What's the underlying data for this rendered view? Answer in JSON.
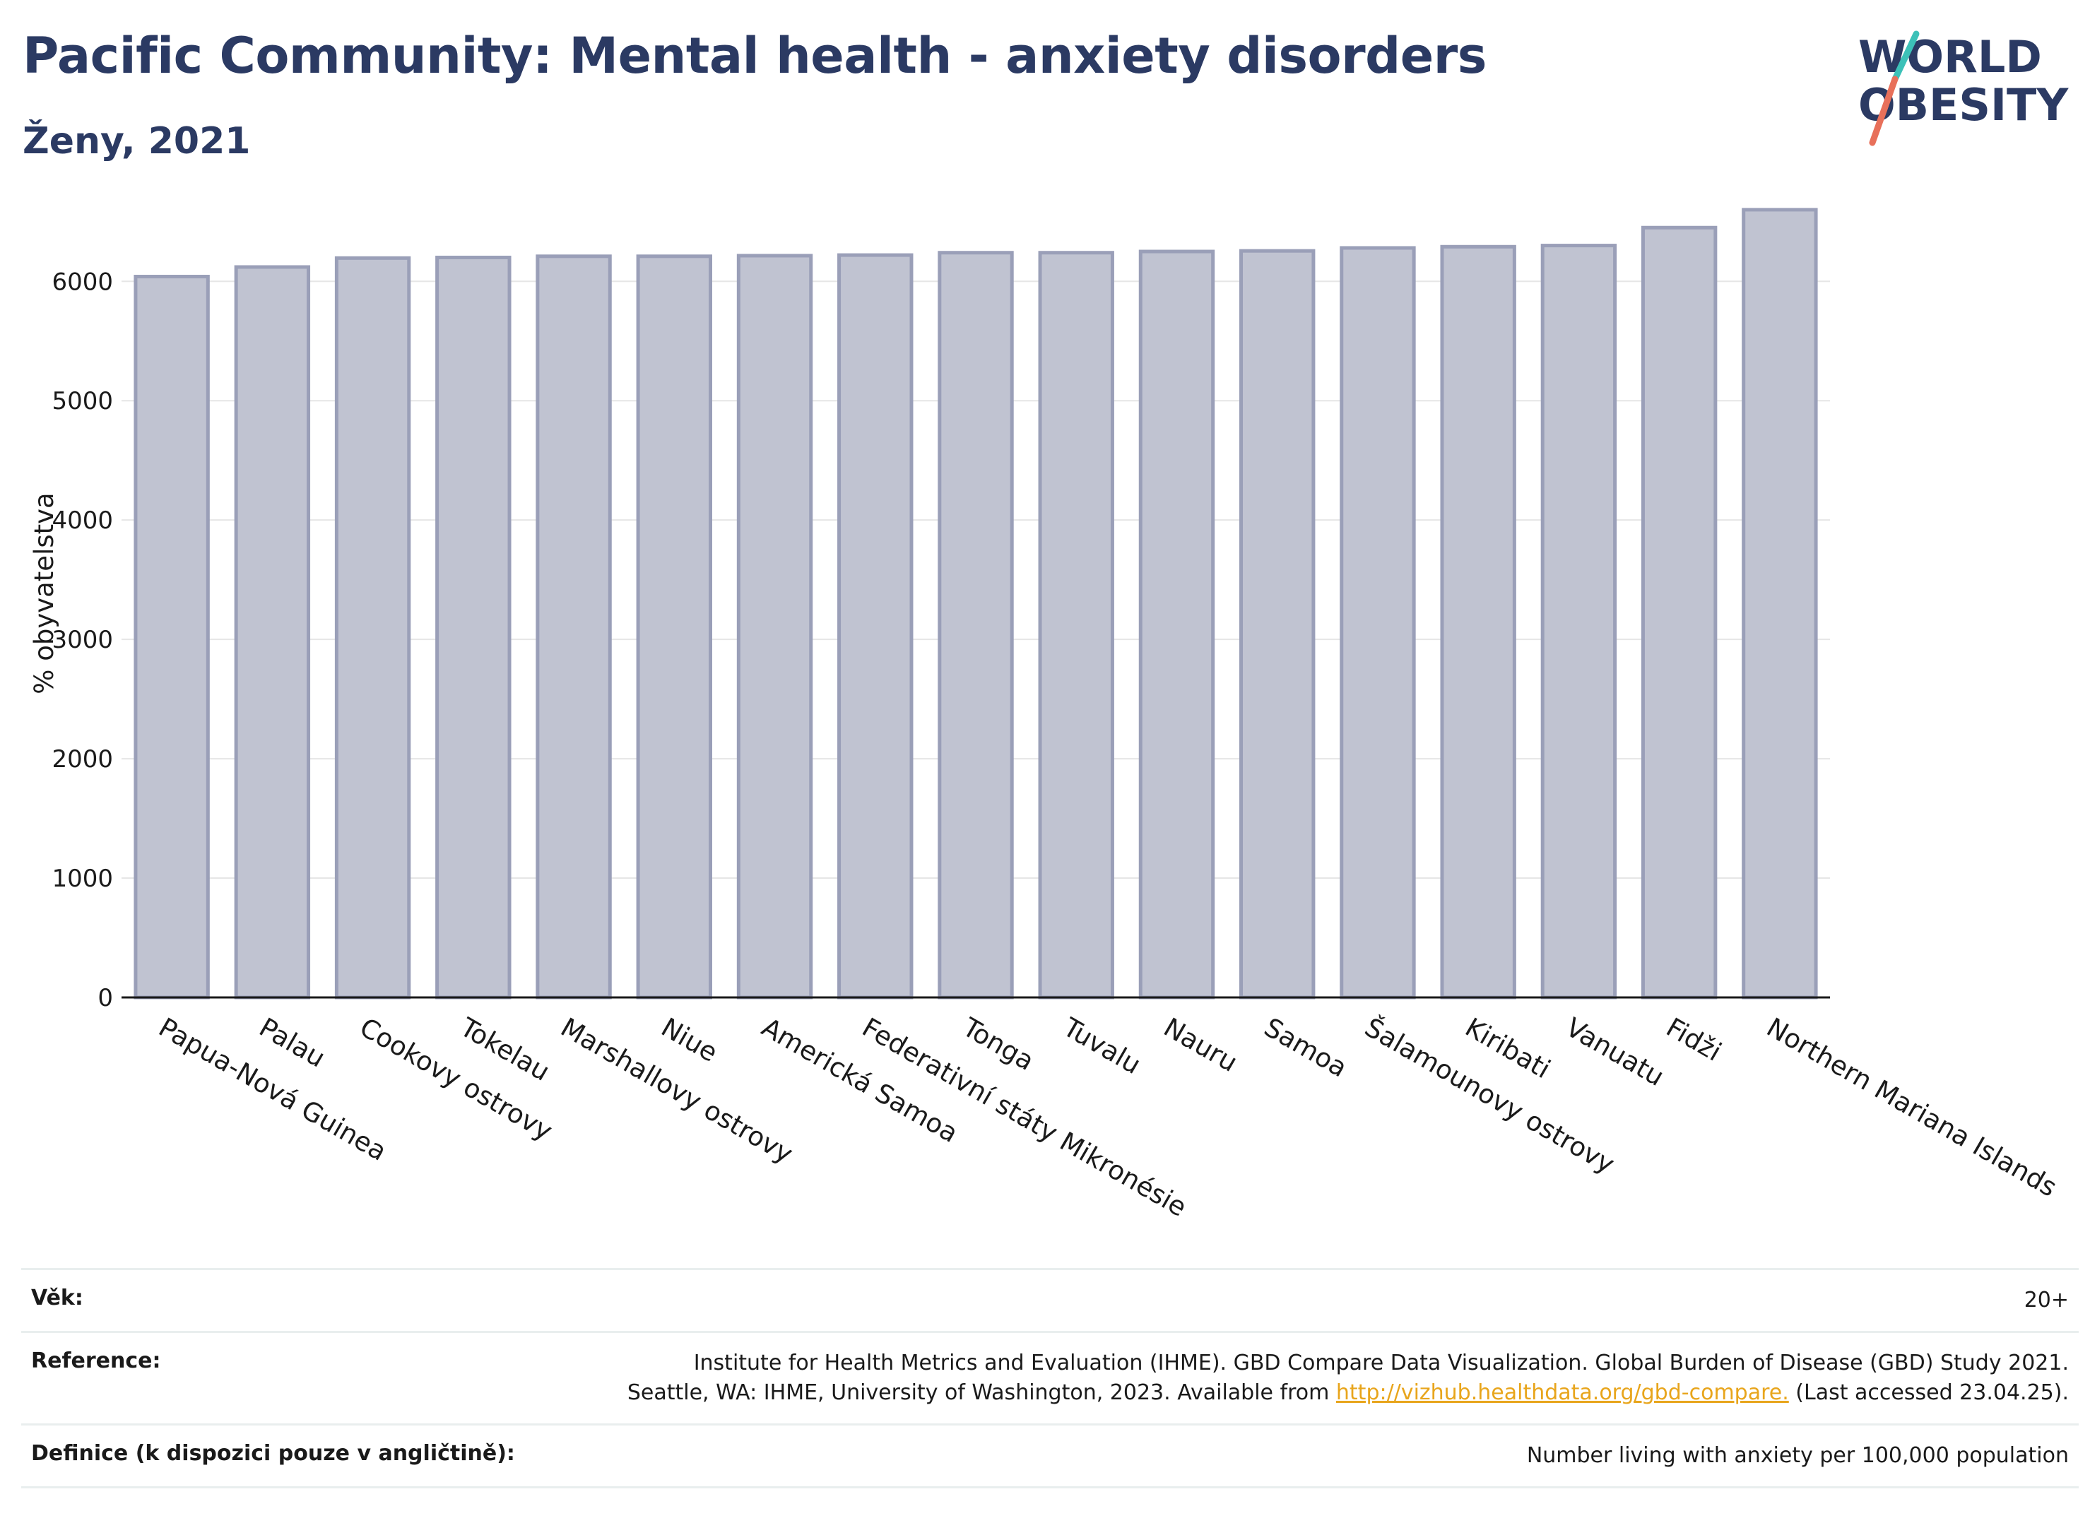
{
  "header": {
    "title": "Pacific Community: Mental health - anxiety disorders",
    "subtitle": "Ženy, 2021",
    "logo_line1": "WORLD",
    "logo_line2": "OBESITY"
  },
  "colors": {
    "title": "#2b3a63",
    "bar_fill": "#c0c3d1",
    "bar_stroke": "#9a9fb8",
    "logo_teal": "#3cc1b8",
    "logo_coral": "#e8705a",
    "link": "#e8a51c"
  },
  "chart_data": {
    "type": "bar",
    "categories": [
      "Papua-Nová Guinea",
      "Palau",
      "Cookovy ostrovy",
      "Tokelau",
      "Marshallovy ostrovy",
      "Niue",
      "Americká Samoa",
      "Federativní státy Mikronésie",
      "Tonga",
      "Tuvalu",
      "Nauru",
      "Samoa",
      "Šalamounovy ostrovy",
      "Kiribati",
      "Vanuatu",
      "Fidži",
      "Northern Mariana Islands"
    ],
    "values": [
      6040,
      6120,
      6195,
      6200,
      6210,
      6210,
      6215,
      6220,
      6240,
      6240,
      6250,
      6255,
      6280,
      6290,
      6300,
      6450,
      6600
    ],
    "ylabel": "% obyvatelstva",
    "xlabel": "",
    "ylim": [
      0,
      6700
    ],
    "yticks": [
      0,
      1000,
      2000,
      3000,
      4000,
      5000,
      6000
    ],
    "grid": true
  },
  "info": {
    "rows": [
      {
        "label": "Věk:",
        "value": "20+"
      },
      {
        "label": "Reference:",
        "value_before": "Institute for Health Metrics and Evaluation (IHME). GBD Compare Data Visualization. Global Burden of Disease (GBD) Study 2021. Seattle, WA: IHME, University of Washington, 2023. Available from ",
        "link": "http://vizhub.healthdata.org/gbd-compare.",
        "value_after": " (Last accessed 23.04.25)."
      },
      {
        "label": "Definice (k dispozici pouze v angličtině):",
        "value": "Number living with anxiety per 100,000 population"
      }
    ]
  }
}
